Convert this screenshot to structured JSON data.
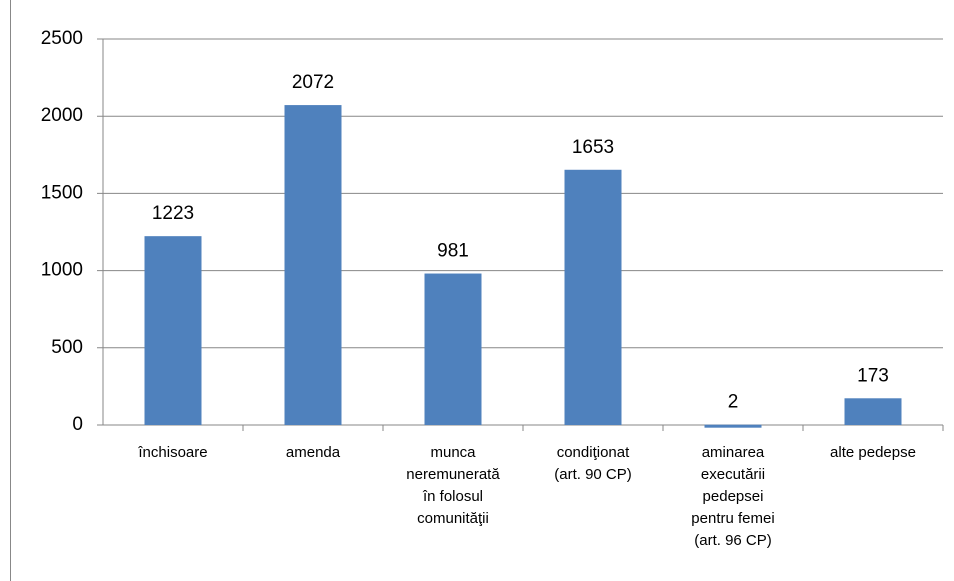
{
  "chart_data": {
    "type": "bar",
    "categories": [
      "închisoare",
      "amenda",
      "munca\nneremunerată\nîn folosul\ncomunităţii",
      "condiţionat\n(art. 90 CP)",
      "aminarea\nexecutării\npedepsei\npentru femei\n(art. 96 CP)",
      "alte pedepse"
    ],
    "values": [
      1223,
      2072,
      981,
      1653,
      2,
      173
    ],
    "color": "#4f81bd",
    "ylim": [
      0,
      2500
    ],
    "yticks": [
      0,
      500,
      1000,
      1500,
      2000,
      2500
    ],
    "grid": true
  }
}
